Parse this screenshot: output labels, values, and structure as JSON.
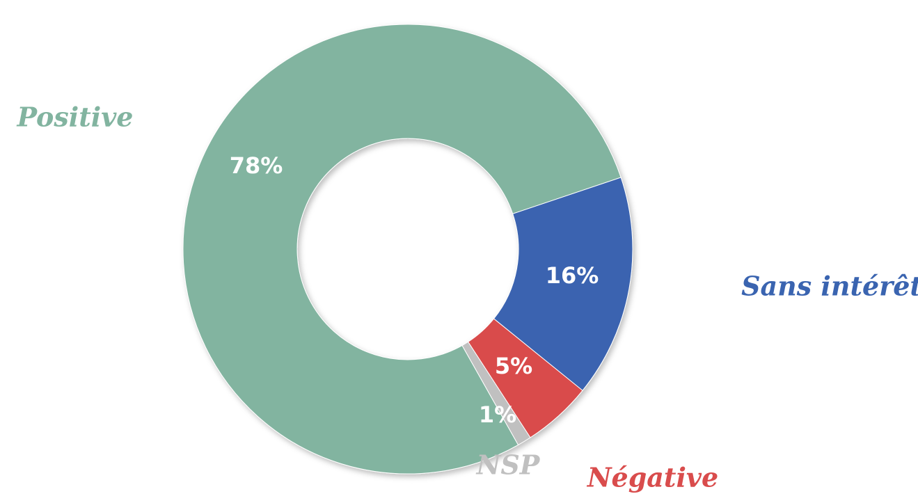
{
  "chart_data": {
    "type": "donut",
    "categories": [
      "Positive",
      "Sans intérêt",
      "Négative",
      "NSP"
    ],
    "values": [
      78,
      16,
      5,
      1
    ],
    "value_labels": [
      "78%",
      "16%",
      "5%",
      "1%"
    ],
    "colors": [
      "#82b4a0",
      "#3a64b0",
      "#d94c4c",
      "#c0c0c0"
    ]
  }
}
